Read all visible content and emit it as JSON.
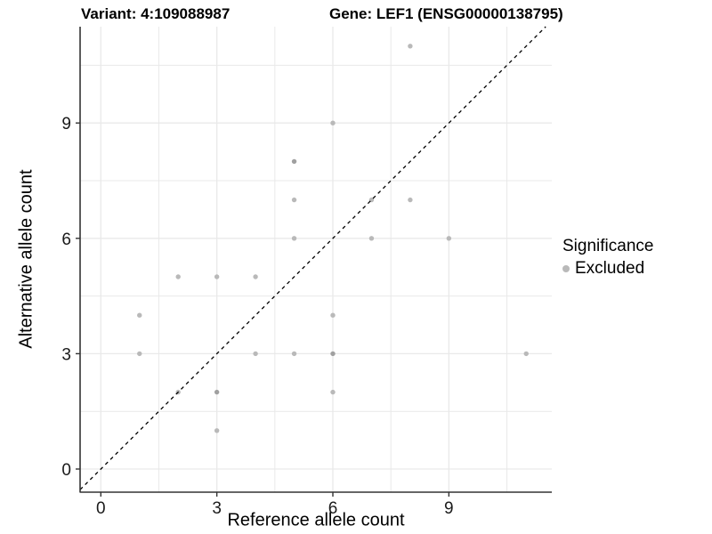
{
  "header": {
    "variant_title": "Variant: 4:109088987",
    "gene_title": "Gene: LEF1 (ENSG00000138795)"
  },
  "chart_data": {
    "type": "scatter",
    "title": "Variant: 4:109088987   Gene: LEF1 (ENSG00000138795)",
    "xlabel": "Reference allele count",
    "ylabel": "Alternative allele count",
    "x_ticks": [
      0,
      3,
      6,
      9
    ],
    "y_ticks": [
      0,
      3,
      6,
      9
    ],
    "x_minor": [
      1.5,
      4.5,
      7.5,
      10.5
    ],
    "y_minor": [
      1.5,
      4.5,
      7.5,
      10.5
    ],
    "xlim": [
      -0.55,
      11.65
    ],
    "ylim": [
      -0.6,
      11.5
    ],
    "grid": true,
    "identity_line": {
      "style": "dashed",
      "equation": "y = x",
      "color": "#000000"
    },
    "legend": {
      "position": "right",
      "title": "Significance",
      "items": [
        {
          "label": "Excluded",
          "color": "#b9b9b9"
        }
      ]
    },
    "series": [
      {
        "name": "Excluded",
        "points": [
          {
            "x": 8,
            "y": 11,
            "overlap": false
          },
          {
            "x": 6,
            "y": 9,
            "overlap": false
          },
          {
            "x": 5,
            "y": 8,
            "overlap": true
          },
          {
            "x": 5,
            "y": 7,
            "overlap": false
          },
          {
            "x": 7,
            "y": 7,
            "overlap": false
          },
          {
            "x": 8,
            "y": 7,
            "overlap": false
          },
          {
            "x": 5,
            "y": 6,
            "overlap": false
          },
          {
            "x": 7,
            "y": 6,
            "overlap": false
          },
          {
            "x": 9,
            "y": 6,
            "overlap": false
          },
          {
            "x": 2,
            "y": 5,
            "overlap": false
          },
          {
            "x": 3,
            "y": 5,
            "overlap": false
          },
          {
            "x": 4,
            "y": 5,
            "overlap": false
          },
          {
            "x": 1,
            "y": 4,
            "overlap": false
          },
          {
            "x": 6,
            "y": 4,
            "overlap": false
          },
          {
            "x": 1,
            "y": 3,
            "overlap": false
          },
          {
            "x": 4,
            "y": 3,
            "overlap": false
          },
          {
            "x": 5,
            "y": 3,
            "overlap": false
          },
          {
            "x": 6,
            "y": 3,
            "overlap": true
          },
          {
            "x": 11,
            "y": 3,
            "overlap": false
          },
          {
            "x": 2,
            "y": 2,
            "overlap": false
          },
          {
            "x": 3,
            "y": 2,
            "overlap": true
          },
          {
            "x": 6,
            "y": 2,
            "overlap": false
          },
          {
            "x": 3,
            "y": 1,
            "overlap": false
          }
        ]
      }
    ],
    "colors": {
      "point": "#b9b9b9",
      "point_overlap": "#a0a0a0",
      "grid": "#e9e9e9",
      "axis_line": "#333333",
      "tick_label": "#1a1a1a"
    }
  }
}
